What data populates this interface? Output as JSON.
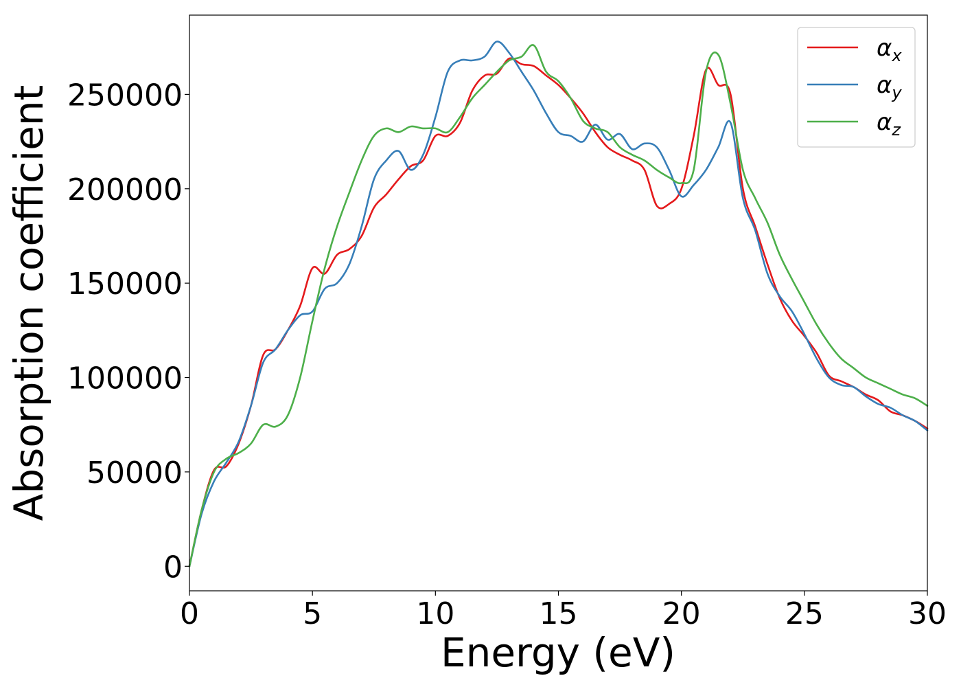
{
  "chart_data": {
    "type": "line",
    "title": "",
    "xlabel": "Energy (eV)",
    "ylabel": "Absorption coefficient",
    "xlim": [
      0,
      30
    ],
    "ylim": [
      -13000,
      292000
    ],
    "xticks": [
      0,
      5,
      10,
      15,
      20,
      25,
      30
    ],
    "yticks": [
      0,
      50000,
      100000,
      150000,
      200000,
      250000
    ],
    "grid": false,
    "legend_position": "top-right",
    "x": [
      0,
      0.5,
      1,
      1.5,
      2,
      2.5,
      3,
      3.5,
      4,
      4.5,
      5,
      5.5,
      6,
      6.5,
      7,
      7.5,
      8,
      8.5,
      9,
      9.5,
      10,
      10.5,
      11,
      11.5,
      12,
      12.5,
      13,
      13.5,
      14,
      14.5,
      15,
      15.5,
      16,
      16.5,
      17,
      17.5,
      18,
      18.5,
      19,
      19.5,
      20,
      20.5,
      21,
      21.5,
      22,
      22.5,
      23,
      23.5,
      24,
      24.5,
      25,
      25.5,
      26,
      26.5,
      27,
      27.5,
      28,
      28.5,
      29,
      29.5,
      30
    ],
    "series": [
      {
        "name": "α",
        "subscript": "x",
        "color": "#e41a1c",
        "values": [
          0,
          30000,
          51000,
          53000,
          65000,
          85000,
          112000,
          115000,
          125000,
          138000,
          158000,
          155000,
          165000,
          168000,
          175000,
          190000,
          197000,
          205000,
          212000,
          215000,
          228000,
          228000,
          235000,
          252000,
          260000,
          261000,
          269000,
          266000,
          265000,
          260000,
          255000,
          248000,
          240000,
          230000,
          222000,
          218000,
          215000,
          210000,
          191000,
          192000,
          200000,
          228000,
          263000,
          255000,
          250000,
          200000,
          180000,
          160000,
          142000,
          130000,
          122000,
          113000,
          101000,
          98000,
          95000,
          91000,
          88000,
          82000,
          80000,
          77000,
          73000
        ]
      },
      {
        "name": "α",
        "subscript": "y",
        "color": "#377eb8",
        "values": [
          0,
          28000,
          45000,
          55000,
          66000,
          85000,
          108000,
          115000,
          125000,
          133000,
          135000,
          147000,
          150000,
          160000,
          180000,
          205000,
          215000,
          220000,
          210000,
          218000,
          238000,
          262000,
          268000,
          268000,
          270000,
          278000,
          272000,
          262000,
          252000,
          240000,
          230000,
          228000,
          225000,
          234000,
          226000,
          229000,
          221000,
          224000,
          222000,
          210000,
          196000,
          202000,
          210000,
          222000,
          235000,
          195000,
          178000,
          155000,
          143000,
          135000,
          123000,
          110000,
          100000,
          96000,
          95000,
          90000,
          86000,
          84000,
          80000,
          77000,
          72000
        ]
      },
      {
        "name": "α",
        "subscript": "z",
        "color": "#4daf4a",
        "values": [
          0,
          30000,
          50000,
          57000,
          60000,
          65000,
          75000,
          74000,
          80000,
          100000,
          130000,
          158000,
          180000,
          198000,
          215000,
          228000,
          232000,
          230000,
          233000,
          232000,
          232000,
          230000,
          238000,
          248000,
          255000,
          262000,
          268000,
          270000,
          276000,
          262000,
          257000,
          248000,
          236000,
          232000,
          230000,
          222000,
          218000,
          215000,
          210000,
          206000,
          203000,
          210000,
          262000,
          271000,
          245000,
          210000,
          195000,
          182000,
          165000,
          152000,
          140000,
          128000,
          118000,
          110000,
          105000,
          100000,
          97000,
          94000,
          91000,
          89000,
          85000
        ]
      }
    ]
  }
}
